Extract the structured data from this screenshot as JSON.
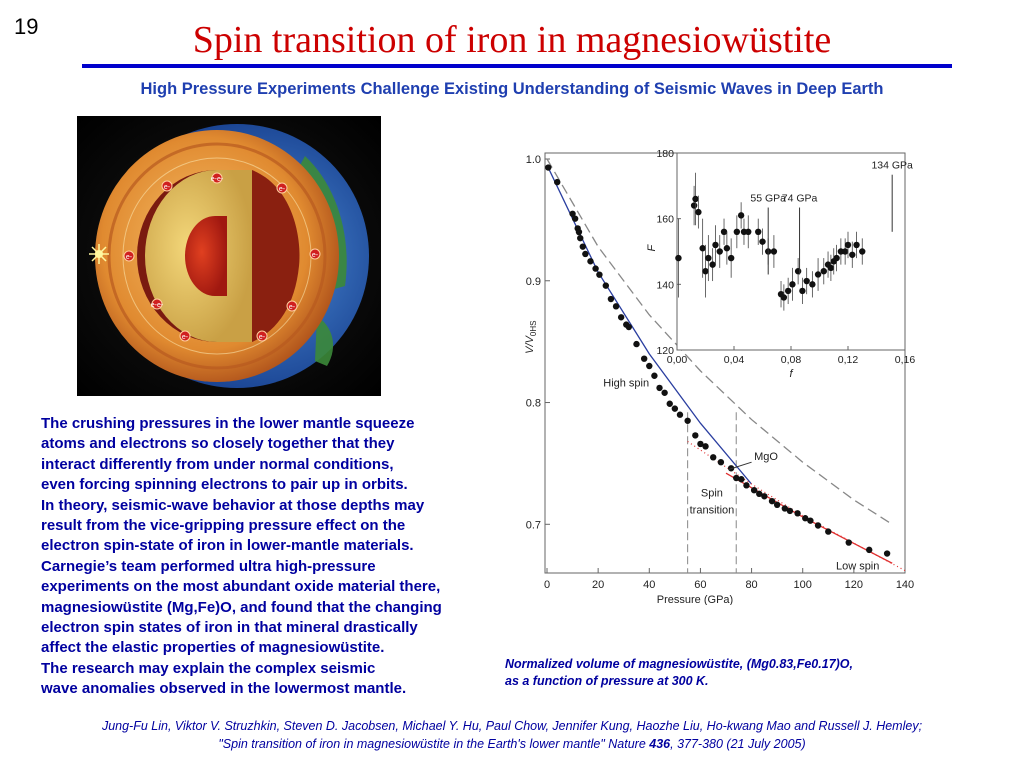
{
  "slide_number": "19",
  "title": "Spin transition of iron in magnesiowüstite",
  "subtitle": "High Pressure Experiments Challenge Existing Understanding of Seismic Waves in Deep Earth",
  "earth_image": {
    "electron_label": "e-",
    "electron_pair_label": "e-e-"
  },
  "body_lines": [
    " The crushing pressures in the lower mantle squeeze",
    "atoms and electrons so closely together that they",
    "interact differently from under normal conditions,",
    "even forcing spinning electrons to pair up in orbits.",
    "In theory, seismic-wave behavior at those depths may",
    "result from the vice-gripping pressure effect on the",
    "electron spin-state of iron in lower-mantle materials.",
    "Carnegie’s team performed ultra high-pressure",
    "experiments on the most abundant oxide material there,",
    "magnesiowüstite (Mg,Fe)O, and found that the changing",
    "electron spin states of iron in that mineral drastically",
    "affect the elastic properties of magnesiowüstite.",
    "The research may explain the complex seismic",
    "wave anomalies observed in the lowermost mantle."
  ],
  "caption_lines": [
    "Normalized volume of magnesiowüstite, (Mg0.83,Fe0.17)O,",
    " as a function of pressure at 300 K."
  ],
  "reference": {
    "line1": "Jung-Fu Lin, Viktor V. Struzhkin, Steven D. Jacobsen, Michael Y. Hu, Paul Chow, Jennifer Kung, Haozhe Liu, Ho-kwang Mao and Russell J. Hemley;",
    "line2_prefix": "\"Spin transition of iron in magnesiowüstite in the Earth's lower mantle\" Nature ",
    "volume": "436",
    "line2_suffix": ", 377-380 (21 July 2005)"
  },
  "chart_data": [
    {
      "type": "scatter",
      "xlabel": "Pressure (GPa)",
      "ylabel": "V/V",
      "ylabel_subscript": "0HS",
      "xlim": [
        0,
        140
      ],
      "ylim": [
        0.66,
        1.0
      ],
      "xticks": [
        0,
        20,
        40,
        60,
        80,
        100,
        120,
        140
      ],
      "yticks": [
        0.7,
        0.8,
        0.9,
        1.0
      ],
      "ytick_labels": [
        "0.7",
        "0.8",
        "0.9",
        "1.0"
      ],
      "annotations": {
        "high_spin": "High spin",
        "low_spin": "Low spin",
        "mgo": "MgO",
        "spin_transition_1": "Spin",
        "spin_transition_2": "transition"
      },
      "points": [
        {
          "x": 0.5,
          "y": 0.993
        },
        {
          "x": 4,
          "y": 0.981
        },
        {
          "x": 10,
          "y": 0.955
        },
        {
          "x": 11,
          "y": 0.951
        },
        {
          "x": 12,
          "y": 0.943
        },
        {
          "x": 12.5,
          "y": 0.94
        },
        {
          "x": 13,
          "y": 0.935
        },
        {
          "x": 14,
          "y": 0.928
        },
        {
          "x": 15,
          "y": 0.922
        },
        {
          "x": 17,
          "y": 0.916
        },
        {
          "x": 19,
          "y": 0.91
        },
        {
          "x": 20.5,
          "y": 0.905
        },
        {
          "x": 23,
          "y": 0.896
        },
        {
          "x": 25,
          "y": 0.885
        },
        {
          "x": 27,
          "y": 0.879
        },
        {
          "x": 29,
          "y": 0.87
        },
        {
          "x": 31,
          "y": 0.864
        },
        {
          "x": 32,
          "y": 0.862
        },
        {
          "x": 35,
          "y": 0.848
        },
        {
          "x": 38,
          "y": 0.836
        },
        {
          "x": 40,
          "y": 0.83
        },
        {
          "x": 42,
          "y": 0.822
        },
        {
          "x": 44,
          "y": 0.812
        },
        {
          "x": 46,
          "y": 0.808
        },
        {
          "x": 48,
          "y": 0.799
        },
        {
          "x": 50,
          "y": 0.795
        },
        {
          "x": 52,
          "y": 0.79
        },
        {
          "x": 55,
          "y": 0.785
        },
        {
          "x": 58,
          "y": 0.773
        },
        {
          "x": 60,
          "y": 0.766
        },
        {
          "x": 62,
          "y": 0.764
        },
        {
          "x": 65,
          "y": 0.755
        },
        {
          "x": 68,
          "y": 0.751
        },
        {
          "x": 72,
          "y": 0.746
        },
        {
          "x": 74,
          "y": 0.738
        },
        {
          "x": 76,
          "y": 0.737
        },
        {
          "x": 78,
          "y": 0.732
        },
        {
          "x": 81,
          "y": 0.728
        },
        {
          "x": 83,
          "y": 0.725
        },
        {
          "x": 85,
          "y": 0.723
        },
        {
          "x": 88,
          "y": 0.719
        },
        {
          "x": 90,
          "y": 0.716
        },
        {
          "x": 93,
          "y": 0.713
        },
        {
          "x": 95,
          "y": 0.711
        },
        {
          "x": 98,
          "y": 0.709
        },
        {
          "x": 101,
          "y": 0.705
        },
        {
          "x": 103,
          "y": 0.703
        },
        {
          "x": 106,
          "y": 0.699
        },
        {
          "x": 110,
          "y": 0.694
        },
        {
          "x": 118,
          "y": 0.685
        },
        {
          "x": 126,
          "y": 0.679
        },
        {
          "x": 133,
          "y": 0.676
        }
      ],
      "high_spin_fit": [
        [
          0,
          0.995
        ],
        [
          20,
          0.907
        ],
        [
          40,
          0.84
        ],
        [
          60,
          0.783
        ],
        [
          80,
          0.733
        ]
      ],
      "high_spin_extrapolation": [
        [
          55,
          0.768
        ],
        [
          80,
          0.733
        ],
        [
          100,
          0.707
        ],
        [
          140,
          0.662
        ]
      ],
      "low_spin_fit": [
        [
          70,
          0.742
        ],
        [
          100,
          0.706
        ],
        [
          135,
          0.668
        ]
      ],
      "mgo_curve": [
        [
          0,
          1.0
        ],
        [
          20,
          0.928
        ],
        [
          40,
          0.872
        ],
        [
          60,
          0.826
        ],
        [
          80,
          0.786
        ],
        [
          100,
          0.751
        ],
        [
          120,
          0.72
        ],
        [
          135,
          0.7
        ]
      ],
      "transition_lines_x": [
        55,
        74
      ]
    },
    {
      "type": "scatter",
      "xlabel": "f",
      "ylabel": "F",
      "xlim": [
        0.0,
        0.16
      ],
      "ylim": [
        120,
        180
      ],
      "xticks": [
        0.0,
        0.04,
        0.08,
        0.12,
        0.16
      ],
      "xtick_labels": [
        "0,00",
        "0,04",
        "0,08",
        "0,12",
        "0,16"
      ],
      "yticks": [
        120,
        140,
        160,
        180
      ],
      "annotations": [
        {
          "text": "55 GPa",
          "x": 0.064
        },
        {
          "text": "74 GPa",
          "x": 0.086
        },
        {
          "text": "134 GPa",
          "x": 0.151
        }
      ],
      "points": [
        {
          "x": 0.001,
          "y": 148,
          "e": 12
        },
        {
          "x": 0.012,
          "y": 164,
          "e": 6
        },
        {
          "x": 0.013,
          "y": 166,
          "e": 8
        },
        {
          "x": 0.015,
          "y": 162,
          "e": 5
        },
        {
          "x": 0.018,
          "y": 151,
          "e": 9
        },
        {
          "x": 0.02,
          "y": 144,
          "e": 8
        },
        {
          "x": 0.022,
          "y": 148,
          "e": 7
        },
        {
          "x": 0.025,
          "y": 146,
          "e": 5
        },
        {
          "x": 0.027,
          "y": 152,
          "e": 6
        },
        {
          "x": 0.03,
          "y": 150,
          "e": 5
        },
        {
          "x": 0.033,
          "y": 156,
          "e": 4
        },
        {
          "x": 0.035,
          "y": 151,
          "e": 5
        },
        {
          "x": 0.038,
          "y": 148,
          "e": 6
        },
        {
          "x": 0.042,
          "y": 156,
          "e": 5
        },
        {
          "x": 0.045,
          "y": 161,
          "e": 4
        },
        {
          "x": 0.047,
          "y": 156,
          "e": 4
        },
        {
          "x": 0.05,
          "y": 156,
          "e": 5
        },
        {
          "x": 0.057,
          "y": 156,
          "e": 4
        },
        {
          "x": 0.06,
          "y": 153,
          "e": 4
        },
        {
          "x": 0.064,
          "y": 150,
          "e": 4
        },
        {
          "x": 0.068,
          "y": 150,
          "e": 5
        },
        {
          "x": 0.073,
          "y": 137,
          "e": 4
        },
        {
          "x": 0.075,
          "y": 136,
          "e": 4
        },
        {
          "x": 0.078,
          "y": 138,
          "e": 4
        },
        {
          "x": 0.081,
          "y": 140,
          "e": 5
        },
        {
          "x": 0.085,
          "y": 144,
          "e": 4
        },
        {
          "x": 0.088,
          "y": 138,
          "e": 4
        },
        {
          "x": 0.091,
          "y": 141,
          "e": 4
        },
        {
          "x": 0.095,
          "y": 140,
          "e": 4
        },
        {
          "x": 0.099,
          "y": 143,
          "e": 5
        },
        {
          "x": 0.103,
          "y": 144,
          "e": 4
        },
        {
          "x": 0.106,
          "y": 146,
          "e": 4
        },
        {
          "x": 0.108,
          "y": 145,
          "e": 4
        },
        {
          "x": 0.11,
          "y": 147,
          "e": 4
        },
        {
          "x": 0.112,
          "y": 148,
          "e": 4
        },
        {
          "x": 0.115,
          "y": 150,
          "e": 4
        },
        {
          "x": 0.118,
          "y": 150,
          "e": 4
        },
        {
          "x": 0.12,
          "y": 152,
          "e": 4
        },
        {
          "x": 0.123,
          "y": 149,
          "e": 4
        },
        {
          "x": 0.126,
          "y": 152,
          "e": 4
        },
        {
          "x": 0.13,
          "y": 150,
          "e": 4
        }
      ]
    }
  ]
}
